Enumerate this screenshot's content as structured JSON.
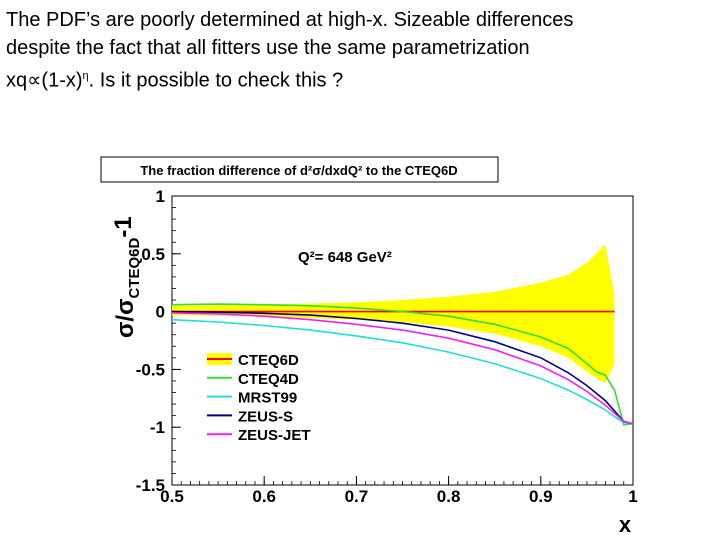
{
  "slide": {
    "line1": "The PDF’s are poorly determined at high-x.  Sizeable differences",
    "line2": "despite the fact that all fitters use the same parametrization",
    "line3_pre": "xq∝(1-x)",
    "line3_sup": "η",
    "line3_post": ".  Is it possible to check this ?"
  },
  "chart_data": {
    "type": "line",
    "title": "The fraction difference of d²σ/dxdQ² to the CTEQ6D",
    "annotation": "Q²= 648 GeV²",
    "xlabel": "x",
    "ylabel": "σ/σCTEQ6D-1",
    "ylabel_main": "σ/σ",
    "ylabel_sub": "CTEQ6D",
    "ylabel_tail": "-1",
    "xlim": [
      0.5,
      1.0
    ],
    "ylim": [
      -1.5,
      1.0
    ],
    "x_ticks": [
      "0.5",
      "0.6",
      "0.7",
      "0.8",
      "0.9",
      "1"
    ],
    "y_ticks": [
      "1",
      "0.5",
      "0",
      "-0.5",
      "-1",
      "-1.5"
    ],
    "legend_position": "bottom-left",
    "band": {
      "name": "CTEQ6D",
      "color": "#ffff00",
      "x": [
        0.5,
        0.6,
        0.7,
        0.75,
        0.8,
        0.85,
        0.9,
        0.93,
        0.95,
        0.97,
        0.98
      ],
      "upper": [
        0.05,
        0.06,
        0.08,
        0.1,
        0.13,
        0.17,
        0.25,
        0.32,
        0.42,
        0.58,
        0.15
      ],
      "lower": [
        -0.03,
        -0.04,
        -0.07,
        -0.09,
        -0.13,
        -0.19,
        -0.3,
        -0.4,
        -0.52,
        -0.62,
        -0.45
      ]
    },
    "series": [
      {
        "name": "CTEQ6D",
        "color": "#ff0000",
        "x": [
          0.5,
          0.6,
          0.7,
          0.8,
          0.9,
          0.98
        ],
        "y": [
          0,
          0,
          0,
          0,
          0,
          0
        ]
      },
      {
        "name": "CTEQ4D",
        "color": "#33dd33",
        "x": [
          0.5,
          0.55,
          0.6,
          0.65,
          0.7,
          0.75,
          0.8,
          0.85,
          0.9,
          0.93,
          0.95,
          0.96,
          0.97,
          0.98,
          0.99,
          1.0
        ],
        "y": [
          0.06,
          0.065,
          0.06,
          0.05,
          0.03,
          0.0,
          -0.04,
          -0.11,
          -0.22,
          -0.32,
          -0.45,
          -0.52,
          -0.55,
          -0.68,
          -0.98,
          -0.97
        ]
      },
      {
        "name": "MRST99",
        "color": "#22dddd",
        "x": [
          0.5,
          0.55,
          0.6,
          0.65,
          0.7,
          0.75,
          0.8,
          0.85,
          0.9,
          0.93,
          0.95,
          0.97,
          0.98,
          0.99,
          1.0
        ],
        "y": [
          -0.07,
          -0.09,
          -0.12,
          -0.16,
          -0.21,
          -0.27,
          -0.35,
          -0.45,
          -0.58,
          -0.68,
          -0.76,
          -0.85,
          -0.91,
          -0.96,
          -0.97
        ]
      },
      {
        "name": "ZEUS-S",
        "color": "#000088",
        "x": [
          0.5,
          0.55,
          0.6,
          0.65,
          0.7,
          0.75,
          0.8,
          0.85,
          0.9,
          0.93,
          0.95,
          0.97,
          0.98,
          0.99,
          1.0
        ],
        "y": [
          0.0,
          -0.005,
          -0.015,
          -0.03,
          -0.06,
          -0.1,
          -0.16,
          -0.26,
          -0.4,
          -0.53,
          -0.64,
          -0.77,
          -0.86,
          -0.95,
          -0.97
        ]
      },
      {
        "name": "ZEUS-JET",
        "color": "#ee22ee",
        "x": [
          0.5,
          0.55,
          0.6,
          0.65,
          0.7,
          0.75,
          0.8,
          0.85,
          0.9,
          0.93,
          0.95,
          0.97,
          0.98,
          0.99,
          1.0
        ],
        "y": [
          -0.01,
          -0.02,
          -0.04,
          -0.07,
          -0.11,
          -0.16,
          -0.23,
          -0.33,
          -0.47,
          -0.59,
          -0.69,
          -0.81,
          -0.88,
          -0.95,
          -0.97
        ]
      }
    ]
  }
}
